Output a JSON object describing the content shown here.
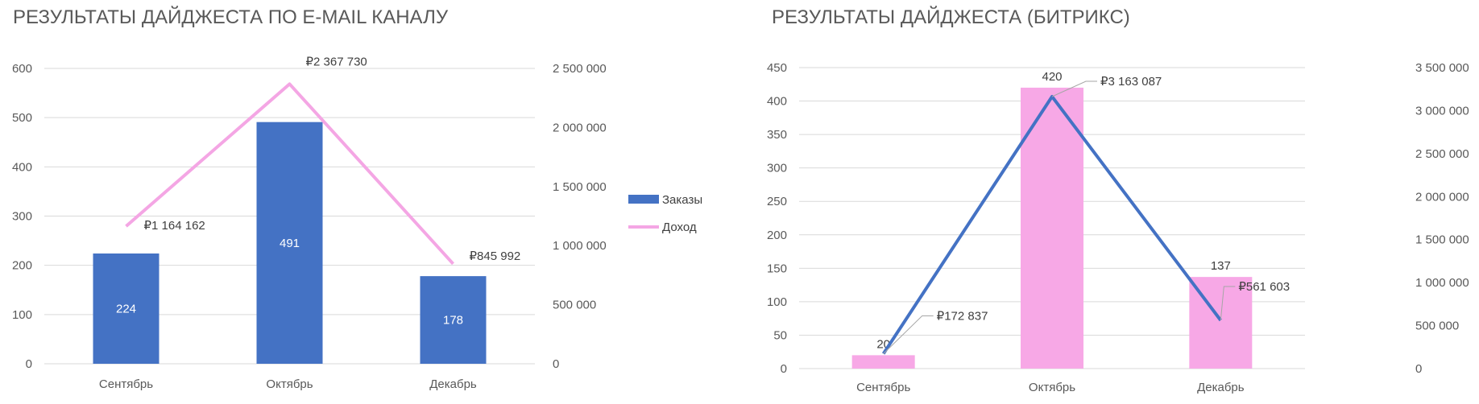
{
  "chart_data": [
    {
      "type": "bar+line",
      "title": "РЕЗУЛЬТАТЫ ДАЙДЖЕСТА ПО E-MAIL КАНАЛУ",
      "categories": [
        "Сентябрь",
        "Октябрь",
        "Декабрь"
      ],
      "series": [
        {
          "name": "Заказы",
          "kind": "bar",
          "axis": "left",
          "values": [
            224,
            491,
            178
          ],
          "labels": [
            "224",
            "491",
            "178"
          ],
          "color": "#4472c4"
        },
        {
          "name": "Доход",
          "kind": "line",
          "axis": "right",
          "values": [
            1164162,
            2367730,
            845992
          ],
          "labels": [
            "₽1 164 162",
            "₽2 367 730",
            "₽845 992"
          ],
          "color": "#f4a6e4"
        }
      ],
      "y_left": {
        "min": 0,
        "max": 600,
        "step": 100,
        "ticks": [
          "0",
          "100",
          "200",
          "300",
          "400",
          "500",
          "600"
        ]
      },
      "y_right": {
        "min": 0,
        "max": 2500000,
        "step": 500000,
        "ticks": [
          "0",
          "500 000",
          "1 000 000",
          "1 500 000",
          "2 000 000",
          "2 500 000"
        ]
      },
      "bar_label_position": "inside",
      "legend": {
        "position": "right",
        "items": [
          {
            "label": "Заказы",
            "symbol": "bar",
            "color": "#4472c4"
          },
          {
            "label": "Доход",
            "symbol": "line",
            "color": "#f4a6e4"
          }
        ]
      },
      "grid": true
    },
    {
      "type": "bar+line",
      "title": "РЕЗУЛЬТАТЫ ДАЙДЖЕСТА  (БИТРИКС)",
      "categories": [
        "Сентябрь",
        "Октябрь",
        "Декабрь"
      ],
      "series": [
        {
          "name": "",
          "kind": "bar",
          "axis": "left",
          "values": [
            20,
            420,
            137
          ],
          "labels": [
            "20",
            "420",
            "137"
          ],
          "color": "#f7a8e6"
        },
        {
          "name": "",
          "kind": "line",
          "axis": "right",
          "values": [
            172837,
            3163087,
            561603
          ],
          "labels": [
            "₽172 837",
            "₽3 163 087",
            "₽561 603"
          ],
          "color": "#4472c4"
        }
      ],
      "y_left": {
        "min": 0,
        "max": 450,
        "step": 50,
        "ticks": [
          "0",
          "50",
          "100",
          "150",
          "200",
          "250",
          "300",
          "350",
          "400",
          "450"
        ]
      },
      "y_right": {
        "min": 0,
        "max": 3500000,
        "step": 500000,
        "ticks": [
          "0",
          "500 000",
          "1 000 000",
          "1 500 000",
          "2 000 000",
          "2 500 000",
          "3 000 000",
          "3 500 000"
        ]
      },
      "bar_label_position": "above",
      "grid": true
    }
  ]
}
